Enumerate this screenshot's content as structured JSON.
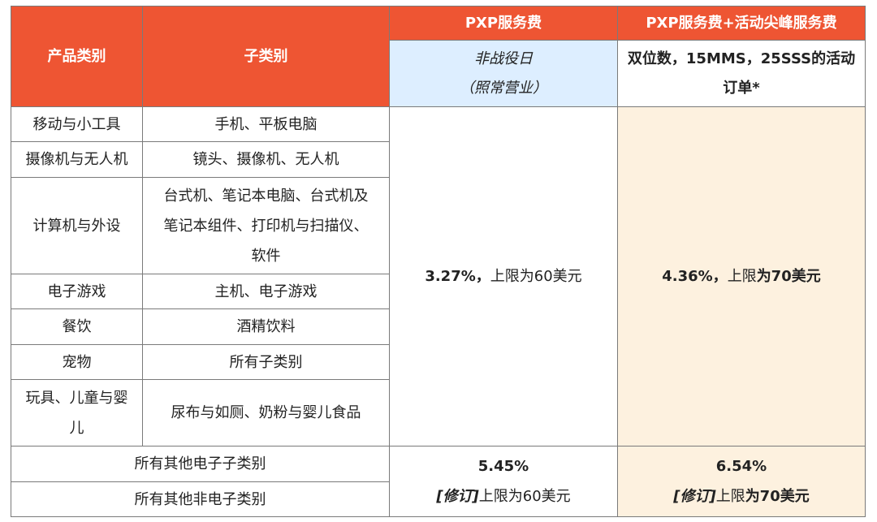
{
  "header": {
    "col_category": "产品类别",
    "col_subcategory": "子类别",
    "col_pxp": "PXP服务费",
    "col_pxp_peak": "PXP服务费+活动尖峰服务费",
    "pxp_sub_line1": "非战役日",
    "pxp_sub_line2": "（照常营业）",
    "peak_sub_line1": "双位数，15MMS，25SSS的活动",
    "peak_sub_line2": "订单*"
  },
  "rows": [
    {
      "category": "移动与小工具",
      "subcategory": "手机、平板电脑"
    },
    {
      "category": "摄像机与无人机",
      "subcategory": "镜头、摄像机、无人机"
    },
    {
      "category": "计算机与外设",
      "subcategory_line1": "台式机、笔记本电脑、台式机及",
      "subcategory_line2": "笔记本组件、打印机与扫描仪、",
      "subcategory_line3": "软件"
    },
    {
      "category": "电子游戏",
      "subcategory": "主机、电子游戏"
    },
    {
      "category": "餐饮",
      "subcategory": "酒精饮料"
    },
    {
      "category": "宠物",
      "subcategory": "所有子类别"
    },
    {
      "category_line1": "玩具、儿童与婴",
      "category_line2": "儿",
      "subcategory": "尿布与如厕、奶粉与婴儿食品"
    }
  ],
  "main_fees": {
    "pxp_rate": "3.27%，",
    "pxp_cap": "上限为60美元",
    "peak_rate": "4.36%，",
    "peak_cap_prefix": "上限",
    "peak_cap_bold": "为70美元"
  },
  "other_rows": {
    "electronic": "所有其他电子子类别",
    "non_electronic": "所有其他非电子类别"
  },
  "other_fees": {
    "pxp_rate": "5.45%",
    "pxp_revised": "[修订]",
    "pxp_cap": "上限为60美元",
    "peak_rate": "6.54%",
    "peak_revised": "[修订]",
    "peak_cap_prefix": "上限",
    "peak_cap_bold": "为70美元"
  },
  "colors": {
    "header_bg": "#ee5533",
    "header_sub_bg": "#ddeeff",
    "peak_column_bg": "#fdf1df",
    "border": "#7a7a7a"
  }
}
